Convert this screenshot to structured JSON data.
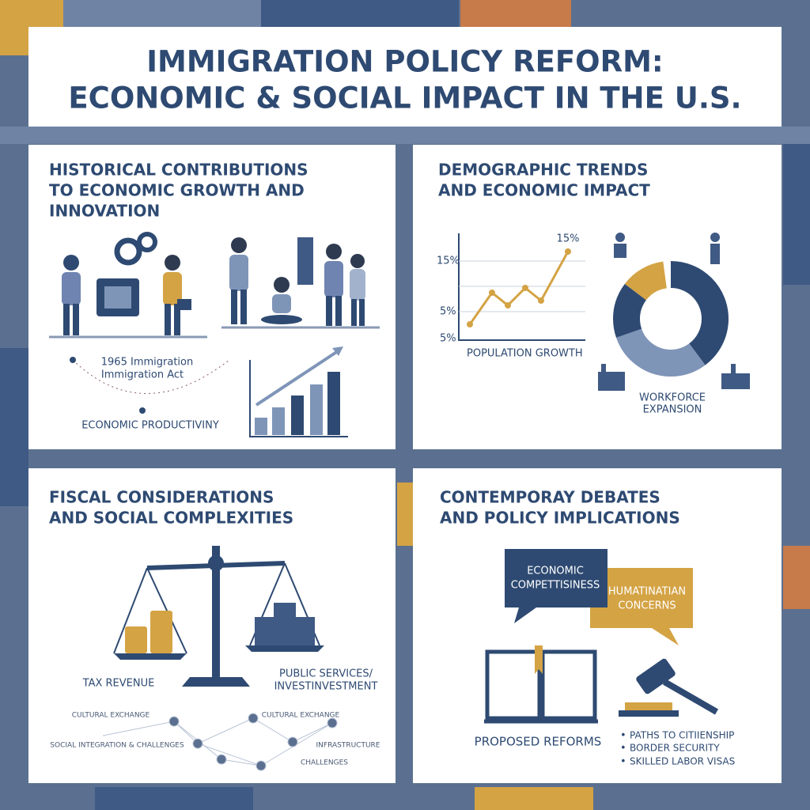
{
  "header": {
    "title": [
      "IMMIGRATION POLICY REFORM:",
      "ECONOMIC & SOCIAL IMPACT IN THE U.S."
    ]
  },
  "panels": [
    {
      "title": [
        "HISTORICAL CONTRIBUTIONS",
        "TO ECONOMIC GROWTH AND",
        "INNOVATION"
      ],
      "labels": [
        "1965 Immigration",
        "Immigration Act",
        "ECONOMIC PRODUCTIVINY"
      ]
    },
    {
      "title": [
        "DEMOGRAPHIC TRENDS",
        "AND ECONOMIC IMPACT"
      ],
      "labels": [
        "15%",
        "15%",
        "5%",
        "5%",
        "POPULATION GROWTH",
        "WORKFORCE",
        "EXPANSION"
      ]
    },
    {
      "title": [
        "FISCAL CONSIDERATIONS",
        "AND SOCIAL COMPLEXITIES"
      ],
      "labels": [
        "TAX REVENUE",
        "PUBLIC SERVICES/",
        "INVESTINVESTMENT",
        "CULTURAL EXCHANGE",
        "CULTURAL EXCHANGE",
        "SOCIAL INTEGRATION & CHALLENGES",
        "INFRASTRUCTURE",
        "CHALLENGES"
      ]
    },
    {
      "title": [
        "CONTEMPORAY DEBATES",
        "AND POLICY IMPLICATIONS"
      ],
      "labels": [
        "ECONOMIC",
        "COMPETTISINESS",
        "HUMATINATIAN",
        "CONCERNS",
        "PROPOSED REFORMS"
      ],
      "bullets": [
        "PATHS TO CITIIENSHIP",
        "BORDER SECURITY",
        "SKILLED LABOR VISAS"
      ]
    }
  ]
}
